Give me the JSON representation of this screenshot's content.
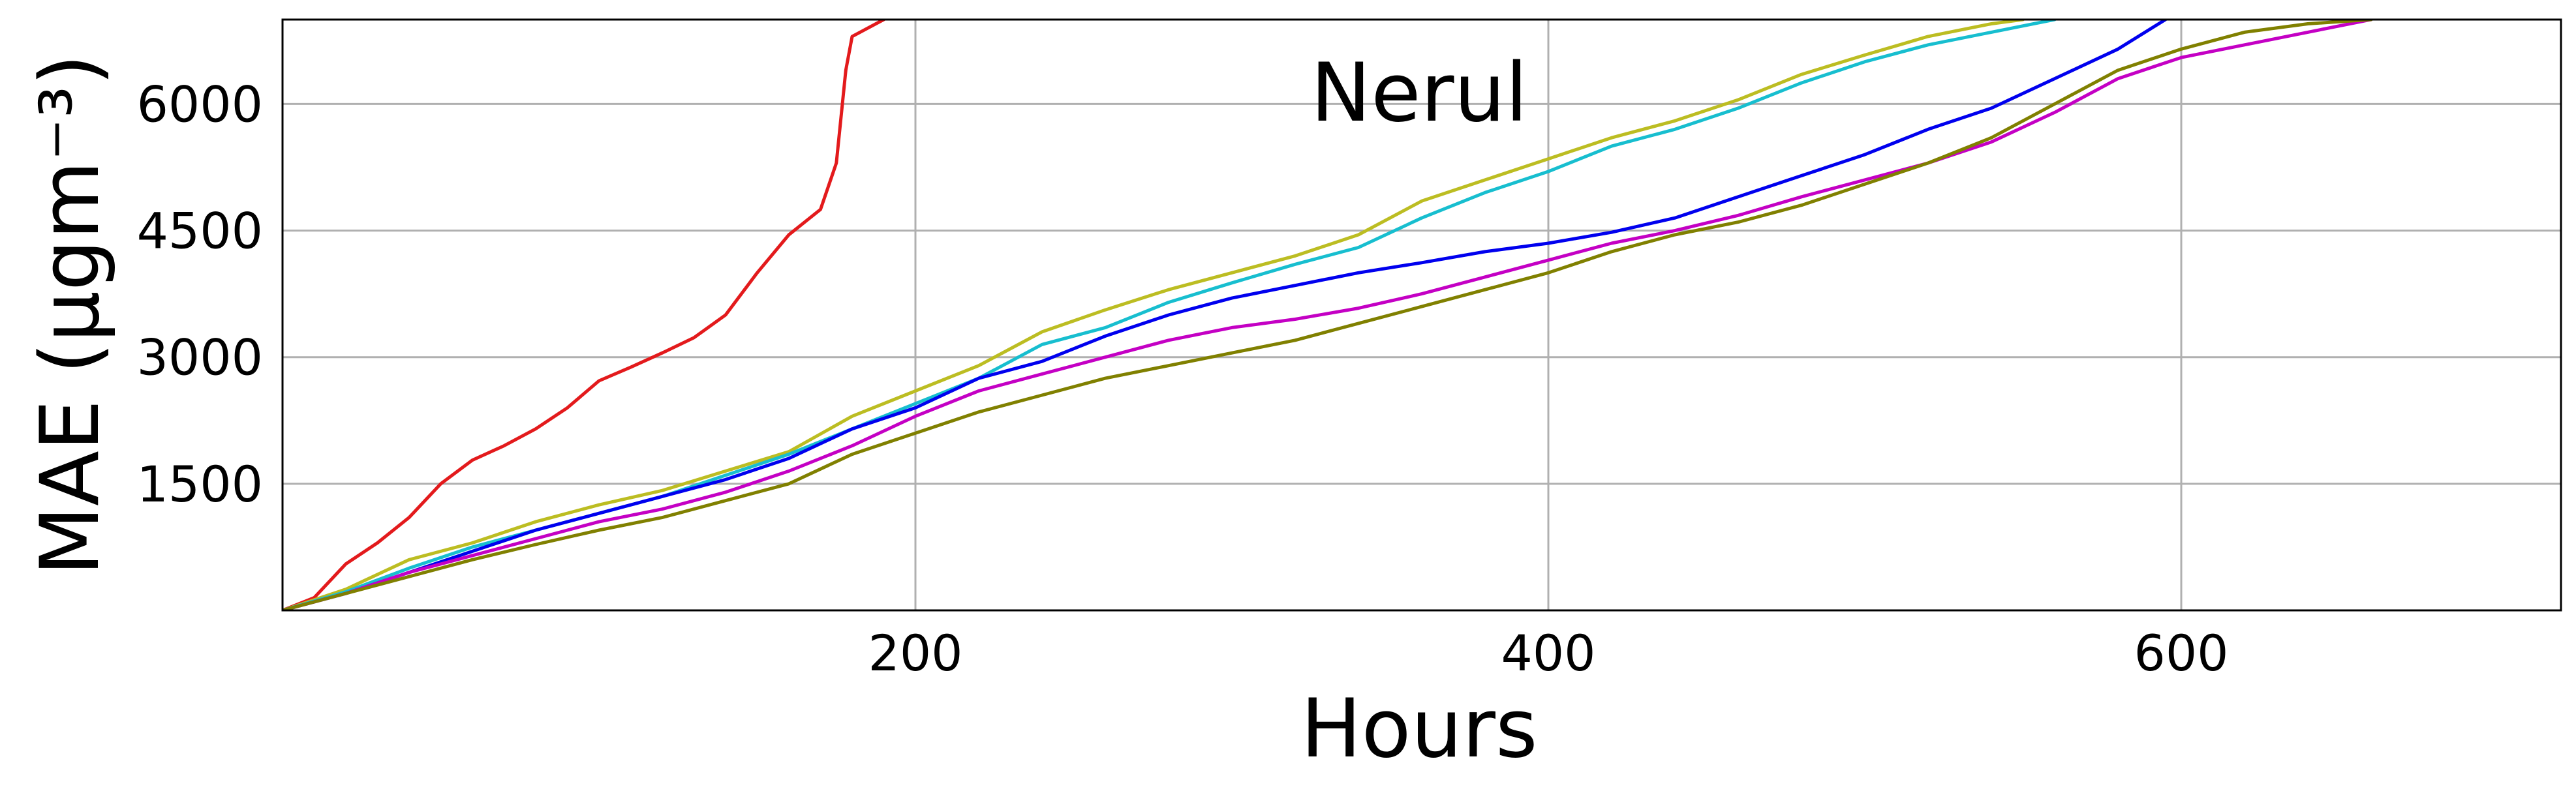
{
  "chart_data": {
    "type": "line",
    "title": "Nerul",
    "xlabel": "Hours",
    "ylabel": "MAE (µgm⁻³)",
    "xlim": [
      0,
      720
    ],
    "ylim": [
      0,
      7000
    ],
    "xticks": [
      200,
      400,
      600
    ],
    "yticks": [
      1500,
      3000,
      4500,
      6000
    ],
    "grid": true,
    "series": [
      {
        "color": "#e31a1c",
        "x": [
          0,
          10,
          20,
          30,
          40,
          50,
          60,
          70,
          80,
          90,
          100,
          110,
          120,
          130,
          140,
          150,
          160,
          165,
          170,
          175,
          178,
          180,
          185,
          190
        ],
        "y": [
          0,
          150,
          550,
          800,
          1100,
          1500,
          1780,
          1950,
          2150,
          2400,
          2720,
          2880,
          3050,
          3230,
          3500,
          4000,
          4450,
          4600,
          4750,
          5300,
          6400,
          6800,
          6900,
          7000
        ]
      },
      {
        "color": "#bcbd22",
        "x": [
          0,
          20,
          40,
          60,
          80,
          100,
          120,
          140,
          160,
          180,
          200,
          220,
          240,
          260,
          280,
          300,
          320,
          340,
          360,
          380,
          400,
          420,
          440,
          460,
          480,
          500,
          520,
          540,
          550
        ],
        "y": [
          0,
          250,
          600,
          800,
          1050,
          1250,
          1420,
          1650,
          1880,
          2300,
          2600,
          2900,
          3300,
          3560,
          3800,
          4000,
          4200,
          4450,
          4850,
          5100,
          5350,
          5600,
          5800,
          6050,
          6350,
          6580,
          6800,
          6950,
          7000
        ]
      },
      {
        "color": "#17becf",
        "x": [
          0,
          20,
          40,
          60,
          80,
          100,
          120,
          140,
          160,
          180,
          200,
          220,
          240,
          260,
          280,
          300,
          320,
          340,
          360,
          380,
          400,
          420,
          440,
          460,
          480,
          500,
          520,
          540,
          560
        ],
        "y": [
          0,
          220,
          500,
          750,
          950,
          1150,
          1350,
          1600,
          1850,
          2150,
          2450,
          2750,
          3150,
          3350,
          3650,
          3880,
          4100,
          4300,
          4650,
          4950,
          5200,
          5500,
          5700,
          5950,
          6250,
          6500,
          6700,
          6850,
          7000
        ]
      },
      {
        "color": "#0000ee",
        "x": [
          0,
          20,
          40,
          60,
          80,
          100,
          120,
          140,
          160,
          180,
          200,
          220,
          240,
          260,
          280,
          300,
          320,
          340,
          360,
          380,
          400,
          420,
          440,
          460,
          480,
          500,
          520,
          540,
          560,
          580,
          595
        ],
        "y": [
          0,
          200,
          450,
          700,
          950,
          1150,
          1350,
          1550,
          1800,
          2150,
          2400,
          2750,
          2950,
          3250,
          3500,
          3700,
          3850,
          4000,
          4120,
          4250,
          4350,
          4480,
          4650,
          4900,
          5150,
          5400,
          5700,
          5950,
          6300,
          6650,
          7000
        ]
      },
      {
        "color": "#c400c4",
        "x": [
          0,
          20,
          40,
          60,
          80,
          100,
          120,
          140,
          160,
          180,
          200,
          220,
          240,
          260,
          280,
          300,
          320,
          340,
          360,
          380,
          400,
          420,
          440,
          460,
          480,
          500,
          520,
          540,
          560,
          580,
          600,
          620,
          640,
          660
        ],
        "y": [
          0,
          200,
          450,
          650,
          850,
          1050,
          1200,
          1400,
          1650,
          1950,
          2300,
          2600,
          2800,
          3000,
          3200,
          3350,
          3450,
          3580,
          3750,
          3950,
          4150,
          4350,
          4500,
          4680,
          4900,
          5100,
          5300,
          5550,
          5900,
          6300,
          6550,
          6700,
          6850,
          7000
        ]
      },
      {
        "color": "#808000",
        "x": [
          0,
          20,
          40,
          60,
          80,
          100,
          120,
          140,
          160,
          180,
          200,
          220,
          240,
          260,
          280,
          300,
          320,
          340,
          360,
          380,
          400,
          420,
          440,
          460,
          480,
          500,
          520,
          540,
          560,
          580,
          600,
          620,
          640,
          660
        ],
        "y": [
          0,
          200,
          400,
          600,
          780,
          950,
          1100,
          1300,
          1500,
          1850,
          2100,
          2350,
          2550,
          2750,
          2900,
          3050,
          3200,
          3400,
          3600,
          3800,
          4000,
          4250,
          4450,
          4600,
          4800,
          5050,
          5300,
          5600,
          6000,
          6400,
          6650,
          6850,
          6950,
          7000
        ]
      }
    ]
  }
}
